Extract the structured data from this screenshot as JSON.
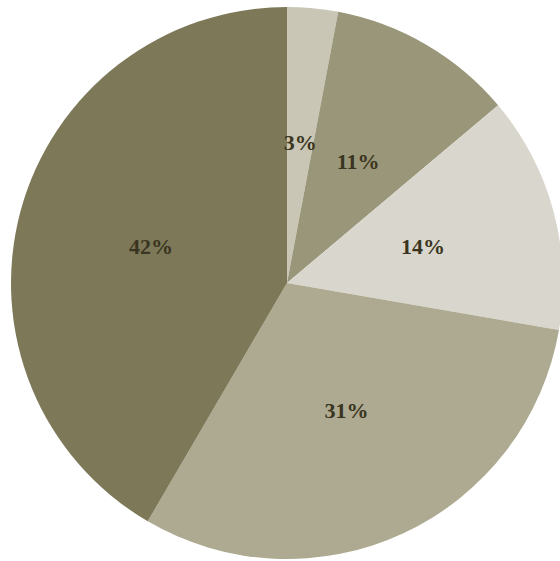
{
  "chart_data": {
    "type": "pie",
    "values": [
      3,
      11,
      14,
      31,
      42
    ],
    "value_labels": [
      "3%",
      "11%",
      "14%",
      "31%",
      "42%"
    ],
    "colors": [
      "#c9c6b6",
      "#9a9679",
      "#d9d7cd",
      "#aeaa91",
      "#7d7858"
    ],
    "data_labels": true
  }
}
